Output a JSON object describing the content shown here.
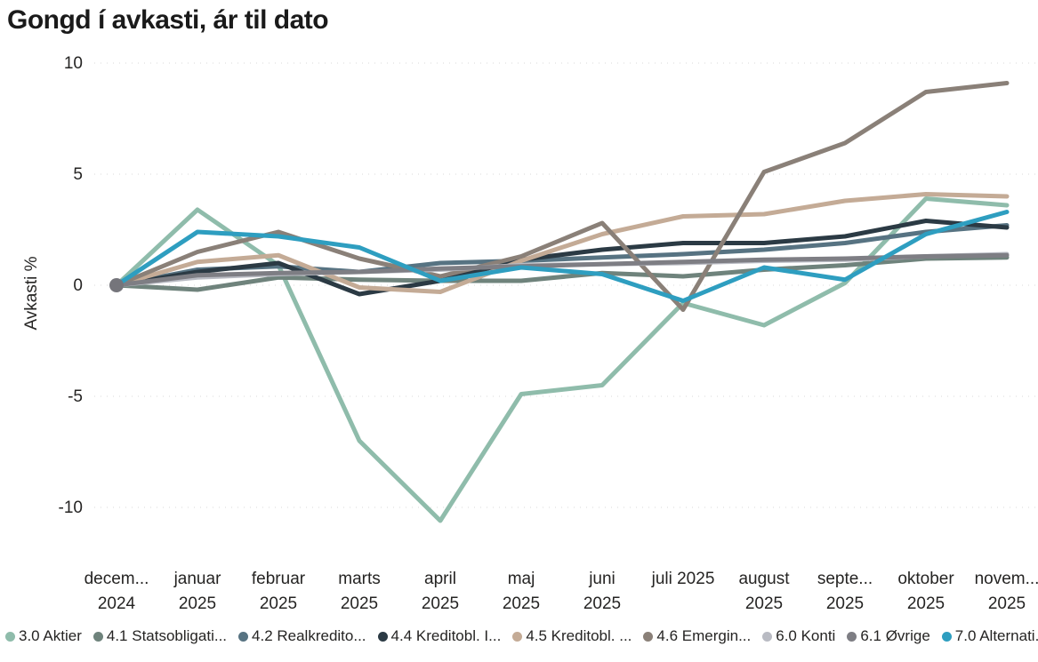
{
  "title": "Gongd í avkasti, ár til dato",
  "chart_data": {
    "type": "line",
    "title": "Gongd í avkasti, ár til dato",
    "xlabel": "",
    "ylabel": "Avkasti %",
    "ylim": [
      -10,
      10
    ],
    "grid": "horizontal-dotted",
    "gridline_color": "#D9D9D9",
    "legend_position": "bottom",
    "y_ticks": [
      {
        "label": "10",
        "value": 10
      },
      {
        "label": "5",
        "value": 5
      },
      {
        "label": "0",
        "value": 0
      },
      {
        "label": "-5",
        "value": -5
      },
      {
        "label": "-10",
        "value": -10
      }
    ],
    "x_categories": [
      {
        "line1": "decem...",
        "line2": "2024"
      },
      {
        "line1": "januar",
        "line2": "2025"
      },
      {
        "line1": "februar",
        "line2": "2025"
      },
      {
        "line1": "marts",
        "line2": "2025"
      },
      {
        "line1": "april",
        "line2": "2025"
      },
      {
        "line1": "maj",
        "line2": "2025"
      },
      {
        "line1": "juni",
        "line2": "2025"
      },
      {
        "line1": "juli 2025",
        "line2": ""
      },
      {
        "line1": "august",
        "line2": "2025"
      },
      {
        "line1": "septe...",
        "line2": "2025"
      },
      {
        "line1": "oktober",
        "line2": "2025"
      },
      {
        "line1": "novem...",
        "line2": "2025"
      }
    ],
    "series": [
      {
        "label": "3.0 Aktier",
        "color": "#8FBCAB",
        "values": [
          0,
          3.4,
          0.9,
          -7.0,
          -10.6,
          -4.9,
          -4.5,
          -0.8,
          -1.8,
          0.1,
          3.9,
          3.6
        ]
      },
      {
        "label": "4.1 Statsobligati...",
        "color": "#6F837C",
        "values": [
          0,
          -0.2,
          0.35,
          0.25,
          0.2,
          0.2,
          0.55,
          0.4,
          0.7,
          0.9,
          1.2,
          1.25
        ]
      },
      {
        "label": "4.2 Realkredito...",
        "color": "#577382",
        "values": [
          0,
          0.7,
          0.85,
          0.6,
          1.0,
          1.1,
          1.25,
          1.4,
          1.6,
          1.9,
          2.4,
          2.7
        ]
      },
      {
        "label": "4.4 Kreditobl. I...",
        "color": "#2B3A44",
        "values": [
          0,
          0.6,
          1.0,
          -0.4,
          0.2,
          1.15,
          1.6,
          1.9,
          1.9,
          2.2,
          2.9,
          2.6
        ]
      },
      {
        "label": "4.5 Kreditobl. ...",
        "color": "#C4AB96",
        "values": [
          0,
          1.05,
          1.35,
          -0.1,
          -0.3,
          1.1,
          2.3,
          3.1,
          3.2,
          3.8,
          4.1,
          4.0
        ]
      },
      {
        "label": "4.6 Emergin...",
        "color": "#8A8078",
        "values": [
          0,
          1.5,
          2.4,
          1.2,
          0.4,
          1.3,
          2.8,
          -1.1,
          5.1,
          6.4,
          8.7,
          9.1
        ]
      },
      {
        "label": "6.0 Konti",
        "color": "#B9BBC3",
        "values": [
          0,
          0.35,
          0.5,
          0.6,
          0.7,
          0.9,
          0.95,
          1.0,
          1.1,
          1.15,
          1.3,
          1.4
        ]
      },
      {
        "label": "6.1 Øvrige",
        "color": "#7E7E84",
        "values": [
          0,
          0.45,
          0.55,
          0.6,
          0.75,
          0.85,
          0.95,
          1.05,
          1.15,
          1.2,
          1.3,
          1.35
        ]
      },
      {
        "label": "7.0 Alternati...",
        "color": "#2E9EC0",
        "values": [
          0,
          2.4,
          2.2,
          1.7,
          0.2,
          0.8,
          0.5,
          -0.7,
          0.8,
          0.25,
          2.3,
          3.3
        ]
      }
    ],
    "start_marker": {
      "month_index": 0,
      "value": 0,
      "color": "#75757B"
    }
  },
  "axis_text_color": "#252423",
  "legend_text_color": "#252423"
}
